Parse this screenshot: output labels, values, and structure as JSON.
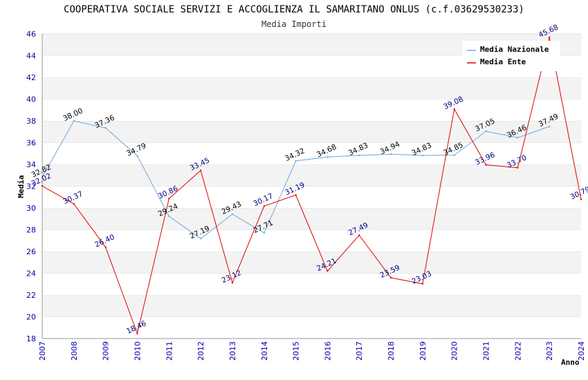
{
  "chart_data": {
    "type": "line",
    "title": "COOPERATIVA SOCIALE SERVIZI E ACCOGLIENZA IL SAMARITANO ONLUS (c.f.03629530233)",
    "subtitle": "Media Importi",
    "xlabel": "Anno",
    "ylabel": "Media",
    "ylim": [
      18,
      46
    ],
    "xlim": [
      2007,
      2024
    ],
    "yticks": [
      18,
      20,
      22,
      24,
      26,
      28,
      30,
      32,
      34,
      36,
      38,
      40,
      42,
      44,
      46
    ],
    "xticks": [
      2007,
      2008,
      2009,
      2010,
      2011,
      2012,
      2013,
      2014,
      2015,
      2016,
      2017,
      2018,
      2019,
      2020,
      2021,
      2022,
      2023,
      2024
    ],
    "grid": "horizontal alternating bands",
    "legend_position": "top-right",
    "series": [
      {
        "name": "Media Nazionale",
        "color": "#6fa8dc",
        "label_color": "#000000",
        "x": [
          2007,
          2008,
          2009,
          2010,
          2011,
          2012,
          2013,
          2014,
          2015,
          2016,
          2017,
          2018,
          2019,
          2020,
          2021,
          2022,
          2023
        ],
        "values": [
          32.82,
          38.0,
          37.36,
          34.79,
          29.24,
          27.19,
          29.43,
          27.71,
          34.32,
          34.68,
          34.83,
          34.94,
          34.83,
          34.85,
          37.05,
          36.46,
          37.49
        ],
        "labels": [
          "32.82",
          "38.00",
          "37.36",
          "34.79",
          "29.24",
          "27.19",
          "29.43",
          "27.71",
          "34.32",
          "34.68",
          "34.83",
          "34.94",
          "34.83",
          "34.85",
          "37.05",
          "36.46",
          "37.49"
        ]
      },
      {
        "name": "Media Ente",
        "color": "#e00000",
        "label_color": "#000080",
        "x": [
          2007,
          2008,
          2009,
          2010,
          2011,
          2012,
          2013,
          2014,
          2015,
          2016,
          2017,
          2018,
          2019,
          2020,
          2021,
          2022,
          2023,
          2024
        ],
        "values": [
          32.02,
          30.37,
          26.4,
          18.46,
          30.86,
          33.45,
          23.12,
          30.17,
          31.19,
          24.21,
          27.49,
          23.59,
          23.03,
          39.08,
          33.96,
          33.7,
          45.68,
          30.79
        ],
        "labels": [
          "32.02",
          "30.37",
          "26.40",
          "18.46",
          "30.86",
          "33.45",
          "23.12",
          "30.17",
          "31.19",
          "24.21",
          "27.49",
          "23.59",
          "23.03",
          "39.08",
          "33.96",
          "33.70",
          "45.68",
          "30.79"
        ]
      }
    ]
  }
}
